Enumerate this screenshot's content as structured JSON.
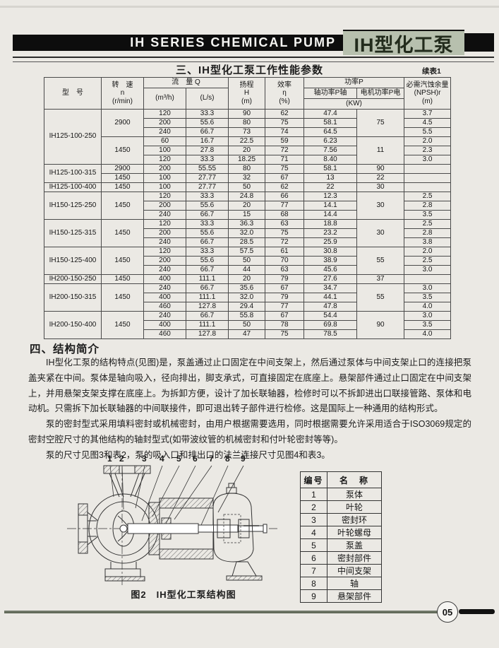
{
  "banner": {
    "title_en": "IH SERIES CHEMICAL PUMP",
    "title_zh": "IH型化工泵",
    "accent_color": "#b7c0ae"
  },
  "table_section": {
    "title": "三、IH型化工泵工作性能参数",
    "continued_note": "续表1",
    "header": {
      "model": "型　号",
      "speed_lines": [
        "转　速",
        "n",
        "(r/min)"
      ],
      "flow": "流　量 Q",
      "flow_unit_m3h": "(m³/h)",
      "flow_unit_ls": "(L/s)",
      "head_lines": [
        "扬程",
        "H",
        "(m)"
      ],
      "eff_lines": [
        "效率",
        "η",
        "(%)"
      ],
      "power": "功率P",
      "power_shaft": "轴功率P轴",
      "power_motor": "电机功率P电",
      "power_unit": "(KW)",
      "npsh_lines": [
        "必需汽蚀余量",
        "(NPSH)r",
        "(m)"
      ]
    },
    "groups": [
      {
        "model": "IH125-100-250",
        "speeds": [
          {
            "rpm": "2900",
            "motor": "75",
            "rows": [
              [
                "120",
                "33.3",
                "90",
                "62",
                "47.4",
                "3.7"
              ],
              [
                "200",
                "55.6",
                "80",
                "75",
                "58.1",
                "4.5"
              ],
              [
                "240",
                "66.7",
                "73",
                "74",
                "64.5",
                "5.5"
              ]
            ]
          },
          {
            "rpm": "1450",
            "motor": "11",
            "rows": [
              [
                "60",
                "16.7",
                "22.5",
                "59",
                "6.23",
                "2.0"
              ],
              [
                "100",
                "27.8",
                "20",
                "72",
                "7.56",
                "2.3"
              ],
              [
                "120",
                "33.3",
                "18.25",
                "71",
                "8.40",
                "3.0"
              ]
            ]
          }
        ]
      },
      {
        "model": "IH125-100-315",
        "speeds": [
          {
            "rpm": "2900",
            "motor": "90",
            "rows": [
              [
                "200",
                "55.55",
                "80",
                "75",
                "58.1",
                ""
              ]
            ]
          },
          {
            "rpm": "1450",
            "motor": "22",
            "rows": [
              [
                "100",
                "27.77",
                "32",
                "67",
                "13",
                ""
              ]
            ]
          }
        ]
      },
      {
        "model": "IH125-100-400",
        "speeds": [
          {
            "rpm": "1450",
            "motor": "30",
            "rows": [
              [
                "100",
                "27.77",
                "50",
                "62",
                "22",
                ""
              ]
            ]
          }
        ]
      },
      {
        "model": "IH150-125-250",
        "speeds": [
          {
            "rpm": "1450",
            "motor": "30",
            "rows": [
              [
                "120",
                "33.3",
                "24.8",
                "66",
                "12.3",
                "2.5"
              ],
              [
                "200",
                "55.6",
                "20",
                "77",
                "14.1",
                "2.8"
              ],
              [
                "240",
                "66.7",
                "15",
                "68",
                "14.4",
                "3.5"
              ]
            ]
          }
        ]
      },
      {
        "model": "IH150-125-315",
        "speeds": [
          {
            "rpm": "1450",
            "motor": "30",
            "rows": [
              [
                "120",
                "33.3",
                "36.3",
                "63",
                "18.8",
                "2.5"
              ],
              [
                "200",
                "55.6",
                "32.0",
                "75",
                "23.2",
                "2.8"
              ],
              [
                "240",
                "66.7",
                "28.5",
                "72",
                "25.9",
                "3.8"
              ]
            ]
          }
        ]
      },
      {
        "model": "IH150-125-400",
        "speeds": [
          {
            "rpm": "1450",
            "motor": "55",
            "rows": [
              [
                "120",
                "33.3",
                "57.5",
                "61",
                "30.8",
                "2.0"
              ],
              [
                "200",
                "55.6",
                "50",
                "70",
                "38.9",
                "2.5"
              ],
              [
                "240",
                "66.7",
                "44",
                "63",
                "45.6",
                "3.0"
              ]
            ]
          }
        ]
      },
      {
        "model": "IH200-150-250",
        "speeds": [
          {
            "rpm": "1450",
            "motor": "37",
            "rows": [
              [
                "400",
                "111.1",
                "20",
                "79",
                "27.6",
                ""
              ]
            ]
          }
        ]
      },
      {
        "model": "IH200-150-315",
        "speeds": [
          {
            "rpm": "1450",
            "motor": "55",
            "rows": [
              [
                "240",
                "66.7",
                "35.6",
                "67",
                "34.7",
                "3.0"
              ],
              [
                "400",
                "111.1",
                "32.0",
                "79",
                "44.1",
                "3.5"
              ],
              [
                "460",
                "127.8",
                "29.4",
                "77",
                "47.8",
                "4.0"
              ]
            ]
          }
        ]
      },
      {
        "model": "IH200-150-400",
        "speeds": [
          {
            "rpm": "1450",
            "motor": "90",
            "rows": [
              [
                "240",
                "66.7",
                "55.8",
                "67",
                "54.4",
                "3.0"
              ],
              [
                "400",
                "111.1",
                "50",
                "78",
                "69.8",
                "3.5"
              ],
              [
                "460",
                "127.8",
                "47",
                "75",
                "78.5",
                "4.0"
              ]
            ]
          }
        ]
      }
    ]
  },
  "structure_section": {
    "heading": "四、结构简介",
    "paragraphs": [
      "IH型化工泵的结构特点(见图)是，泵盖通过止口固定在中间支架上，然后通过泵体与中间支架止口的连接把泵盖夹紧在中间。泵体是轴向吸入，径向排出，脚支承式，可直接固定在底座上。悬架部件通过止口固定在中间支架上，并用悬架支架支撑在底座上。为拆卸方便，设计了加长联轴器，检修时可以不拆卸进出口联接管路、泵体和电动机。只需拆下加长联轴器的中间联接件，即可退出转子部件进行检修。这是国际上一种通用的结构形式。",
      "泵的密封型式采用填料密封或机械密封，由用户根据需要选用，同时根据需要允许采用适合于ISO3069规定的密封空腔尺寸的其他结构的轴封型式(如带波纹管的机械密封和付叶轮密封等等)。",
      "泵的尺寸见图3和表2，泵的吸入口和排出口的法兰连接尺寸见图4和表3。"
    ]
  },
  "figure": {
    "caption": "图2　IH型化工泵结构图",
    "callouts": [
      "1",
      "2",
      "3",
      "4",
      "5",
      "6",
      "7",
      "8",
      "9"
    ]
  },
  "parts_table": {
    "headers": [
      "编号",
      "名　称"
    ],
    "rows": [
      [
        "1",
        "泵体"
      ],
      [
        "2",
        "叶轮"
      ],
      [
        "3",
        "密封环"
      ],
      [
        "4",
        "叶轮螺母"
      ],
      [
        "5",
        "泵盖"
      ],
      [
        "6",
        "密封部件"
      ],
      [
        "7",
        "中间支架"
      ],
      [
        "8",
        "轴"
      ],
      [
        "9",
        "悬架部件"
      ]
    ]
  },
  "footer": {
    "page_number": "05"
  }
}
